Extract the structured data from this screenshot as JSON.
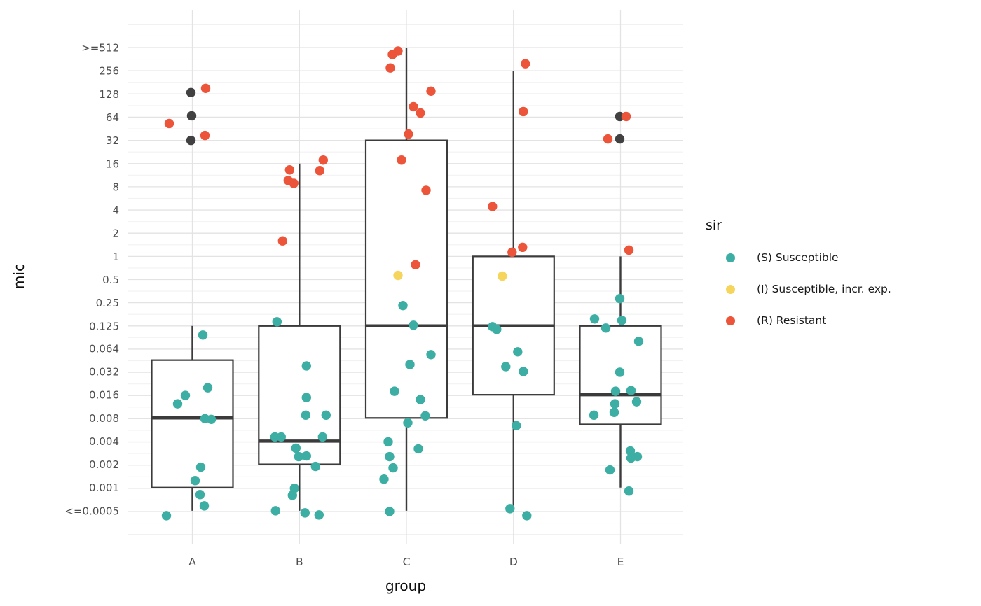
{
  "colors": {
    "S": "#3CAEA3",
    "I": "#F6D55C",
    "R": "#ED553B",
    "NA": "#414141",
    "box_stroke": "#3B3B3B",
    "grid_major": "#E3E3E3",
    "grid_minor": "#F2F2F2",
    "tick_label": "#4D4D4D",
    "axis_title": "#0D0D0D"
  },
  "axes": {
    "x_title": "group",
    "y_title": "mic"
  },
  "legend": {
    "title": "sir",
    "items": [
      {
        "sir": "S",
        "label": "(S) Susceptible"
      },
      {
        "sir": "I",
        "label": "(I) Susceptible, incr. exp."
      },
      {
        "sir": "R",
        "label": "(R) Resistant"
      }
    ]
  },
  "chart_data": {
    "type": "boxplot",
    "title": "",
    "xlabel": "group",
    "ylabel": "mic",
    "y_scale": "log2",
    "grid": "major+minor",
    "legend_position": "right",
    "x_categories": [
      "A",
      "B",
      "C",
      "D",
      "E"
    ],
    "y_ticks": [
      {
        "label": ">=512",
        "value": 512
      },
      {
        "label": "256",
        "value": 256
      },
      {
        "label": "128",
        "value": 128
      },
      {
        "label": "64",
        "value": 64
      },
      {
        "label": "32",
        "value": 32
      },
      {
        "label": "16",
        "value": 16
      },
      {
        "label": "8",
        "value": 8
      },
      {
        "label": "4",
        "value": 4
      },
      {
        "label": "2",
        "value": 2
      },
      {
        "label": "1",
        "value": 1
      },
      {
        "label": "0.5",
        "value": 0.5
      },
      {
        "label": "0.25",
        "value": 0.25
      },
      {
        "label": "0.125",
        "value": 0.125
      },
      {
        "label": "0.064",
        "value": 0.064
      },
      {
        "label": "0.032",
        "value": 0.032
      },
      {
        "label": "0.016",
        "value": 0.016
      },
      {
        "label": "0.008",
        "value": 0.008
      },
      {
        "label": "0.004",
        "value": 0.004
      },
      {
        "label": "0.002",
        "value": 0.002
      },
      {
        "label": "0.001",
        "value": 0.001
      },
      {
        "label": "<=0.0005",
        "value": 0.0005
      }
    ],
    "boxes": [
      {
        "group": "A",
        "whisker_low": 0.0005,
        "q1": 0.001,
        "median": 0.008,
        "q3": 0.045,
        "whisker_high": 0.125
      },
      {
        "group": "B",
        "whisker_low": 0.0005,
        "q1": 0.002,
        "median": 0.004,
        "q3": 0.125,
        "whisker_high": 16
      },
      {
        "group": "C",
        "whisker_low": 0.0005,
        "q1": 0.008,
        "median": 0.125,
        "q3": 32,
        "whisker_high": 512
      },
      {
        "group": "D",
        "whisker_low": 0.00055,
        "q1": 0.016,
        "median": 0.125,
        "q3": 1,
        "whisker_high": 256
      },
      {
        "group": "E",
        "whisker_low": 0.001,
        "q1": 0.0066,
        "median": 0.016,
        "q3": 0.125,
        "whisker_high": 1
      }
    ],
    "points": [
      {
        "group": "A",
        "sir": "NA",
        "mic": 128,
        "jx": -2,
        "jy": -2
      },
      {
        "group": "A",
        "sir": "NA",
        "mic": 64,
        "jx": -1,
        "jy": -2
      },
      {
        "group": "A",
        "sir": "NA",
        "mic": 32,
        "jx": -2,
        "jy": 0
      },
      {
        "group": "A",
        "sir": "R",
        "mic": 128,
        "jx": 19,
        "jy": -8
      },
      {
        "group": "A",
        "sir": "R",
        "mic": 64,
        "jx": -33,
        "jy": 9
      },
      {
        "group": "A",
        "sir": "R",
        "mic": 32,
        "jx": 18,
        "jy": -7
      },
      {
        "group": "A",
        "sir": "S",
        "mic": 0.125,
        "jx": 15,
        "jy": 13
      },
      {
        "group": "A",
        "sir": "S",
        "mic": 0.016,
        "jx": 22,
        "jy": -10
      },
      {
        "group": "A",
        "sir": "S",
        "mic": 0.016,
        "jx": -10,
        "jy": 1
      },
      {
        "group": "A",
        "sir": "S",
        "mic": 0.016,
        "jx": -21,
        "jy": 13
      },
      {
        "group": "A",
        "sir": "S",
        "mic": 0.008,
        "jx": 18,
        "jy": 1
      },
      {
        "group": "A",
        "sir": "S",
        "mic": 0.008,
        "jx": 27,
        "jy": 2
      },
      {
        "group": "A",
        "sir": "S",
        "mic": 0.002,
        "jx": 12,
        "jy": 4
      },
      {
        "group": "A",
        "sir": "S",
        "mic": 0.001,
        "jx": 4,
        "jy": -10
      },
      {
        "group": "A",
        "sir": "S",
        "mic": 0.001,
        "jx": 11,
        "jy": 10
      },
      {
        "group": "A",
        "sir": "S",
        "mic": 0.0005,
        "jx": 17,
        "jy": -7
      },
      {
        "group": "A",
        "sir": "S",
        "mic": 0.0005,
        "jx": -37,
        "jy": 7
      },
      {
        "group": "B",
        "sir": "R",
        "mic": 16,
        "jx": 34,
        "jy": -5
      },
      {
        "group": "B",
        "sir": "R",
        "mic": 16,
        "jx": -14,
        "jy": 9
      },
      {
        "group": "B",
        "sir": "R",
        "mic": 16,
        "jx": 29,
        "jy": 10
      },
      {
        "group": "B",
        "sir": "R",
        "mic": 8,
        "jx": -16,
        "jy": -9
      },
      {
        "group": "B",
        "sir": "R",
        "mic": 8,
        "jx": -8,
        "jy": -5
      },
      {
        "group": "B",
        "sir": "R",
        "mic": 2,
        "jx": -24,
        "jy": 11
      },
      {
        "group": "B",
        "sir": "S",
        "mic": 0.125,
        "jx": -32,
        "jy": -6
      },
      {
        "group": "B",
        "sir": "S",
        "mic": 0.032,
        "jx": 10,
        "jy": -8
      },
      {
        "group": "B",
        "sir": "S",
        "mic": 0.016,
        "jx": 10,
        "jy": 4
      },
      {
        "group": "B",
        "sir": "S",
        "mic": 0.008,
        "jx": 9,
        "jy": -4
      },
      {
        "group": "B",
        "sir": "S",
        "mic": 0.008,
        "jx": 38,
        "jy": -4
      },
      {
        "group": "B",
        "sir": "S",
        "mic": 0.004,
        "jx": -35,
        "jy": -6
      },
      {
        "group": "B",
        "sir": "S",
        "mic": 0.004,
        "jx": -26,
        "jy": -6
      },
      {
        "group": "B",
        "sir": "S",
        "mic": 0.004,
        "jx": 33,
        "jy": -6
      },
      {
        "group": "B",
        "sir": "S",
        "mic": 0.004,
        "jx": -5,
        "jy": 10
      },
      {
        "group": "B",
        "sir": "S",
        "mic": 0.002,
        "jx": -1,
        "jy": -11
      },
      {
        "group": "B",
        "sir": "S",
        "mic": 0.002,
        "jx": 10,
        "jy": -12
      },
      {
        "group": "B",
        "sir": "S",
        "mic": 0.002,
        "jx": 23,
        "jy": 3
      },
      {
        "group": "B",
        "sir": "S",
        "mic": 0.001,
        "jx": -7,
        "jy": 1
      },
      {
        "group": "B",
        "sir": "S",
        "mic": 0.001,
        "jx": -10,
        "jy": 11
      },
      {
        "group": "B",
        "sir": "S",
        "mic": 0.0005,
        "jx": -34,
        "jy": 0
      },
      {
        "group": "B",
        "sir": "S",
        "mic": 0.0005,
        "jx": 8,
        "jy": 3
      },
      {
        "group": "B",
        "sir": "S",
        "mic": 0.0005,
        "jx": 28,
        "jy": 6
      },
      {
        "group": "C",
        "sir": "R",
        "mic": 512,
        "jx": -12,
        "jy": 5
      },
      {
        "group": "C",
        "sir": "R",
        "mic": 512,
        "jx": -20,
        "jy": 10
      },
      {
        "group": "C",
        "sir": "R",
        "mic": 256,
        "jx": -23,
        "jy": -4
      },
      {
        "group": "C",
        "sir": "R",
        "mic": 128,
        "jx": 35,
        "jy": -4
      },
      {
        "group": "C",
        "sir": "R",
        "mic": 64,
        "jx": 10,
        "jy": -15
      },
      {
        "group": "C",
        "sir": "R",
        "mic": 64,
        "jx": 20,
        "jy": -6
      },
      {
        "group": "C",
        "sir": "R",
        "mic": 32,
        "jx": 3,
        "jy": -9
      },
      {
        "group": "C",
        "sir": "R",
        "mic": 16,
        "jx": -7,
        "jy": -5
      },
      {
        "group": "C",
        "sir": "R",
        "mic": 8,
        "jx": 28,
        "jy": 5
      },
      {
        "group": "C",
        "sir": "R",
        "mic": 1,
        "jx": 13,
        "jy": 12
      },
      {
        "group": "C",
        "sir": "I",
        "mic": 0.5,
        "jx": -12,
        "jy": -6
      },
      {
        "group": "C",
        "sir": "S",
        "mic": 0.25,
        "jx": -5,
        "jy": 4
      },
      {
        "group": "C",
        "sir": "S",
        "mic": 0.125,
        "jx": 10,
        "jy": -1
      },
      {
        "group": "C",
        "sir": "S",
        "mic": 0.064,
        "jx": 35,
        "jy": 9
      },
      {
        "group": "C",
        "sir": "S",
        "mic": 0.032,
        "jx": 5,
        "jy": -10
      },
      {
        "group": "C",
        "sir": "S",
        "mic": 0.016,
        "jx": -17,
        "jy": -5
      },
      {
        "group": "C",
        "sir": "S",
        "mic": 0.016,
        "jx": 20,
        "jy": 7
      },
      {
        "group": "C",
        "sir": "S",
        "mic": 0.008,
        "jx": 27,
        "jy": -3
      },
      {
        "group": "C",
        "sir": "S",
        "mic": 0.008,
        "jx": 2,
        "jy": 7
      },
      {
        "group": "C",
        "sir": "S",
        "mic": 0.004,
        "jx": -26,
        "jy": 1
      },
      {
        "group": "C",
        "sir": "S",
        "mic": 0.004,
        "jx": 17,
        "jy": 11
      },
      {
        "group": "C",
        "sir": "S",
        "mic": 0.002,
        "jx": -24,
        "jy": -11
      },
      {
        "group": "C",
        "sir": "S",
        "mic": 0.002,
        "jx": -19,
        "jy": 5
      },
      {
        "group": "C",
        "sir": "S",
        "mic": 0.001,
        "jx": -32,
        "jy": -12
      },
      {
        "group": "C",
        "sir": "S",
        "mic": 0.0005,
        "jx": -24,
        "jy": 1
      },
      {
        "group": "D",
        "sir": "R",
        "mic": 256,
        "jx": 17,
        "jy": -10
      },
      {
        "group": "D",
        "sir": "R",
        "mic": 64,
        "jx": 14,
        "jy": -8
      },
      {
        "group": "D",
        "sir": "R",
        "mic": 4,
        "jx": -30,
        "jy": -5
      },
      {
        "group": "D",
        "sir": "R",
        "mic": 1,
        "jx": 13,
        "jy": -13
      },
      {
        "group": "D",
        "sir": "R",
        "mic": 1,
        "jx": -2,
        "jy": -6
      },
      {
        "group": "D",
        "sir": "I",
        "mic": 0.5,
        "jx": -16,
        "jy": -5
      },
      {
        "group": "D",
        "sir": "S",
        "mic": 0.125,
        "jx": -30,
        "jy": 1
      },
      {
        "group": "D",
        "sir": "S",
        "mic": 0.125,
        "jx": -24,
        "jy": 5
      },
      {
        "group": "D",
        "sir": "S",
        "mic": 0.064,
        "jx": 6,
        "jy": 5
      },
      {
        "group": "D",
        "sir": "S",
        "mic": 0.032,
        "jx": -11,
        "jy": -7
      },
      {
        "group": "D",
        "sir": "S",
        "mic": 0.032,
        "jx": 14,
        "jy": 0
      },
      {
        "group": "D",
        "sir": "S",
        "mic": 0.008,
        "jx": 4,
        "jy": 11
      },
      {
        "group": "D",
        "sir": "S",
        "mic": 0.0005,
        "jx": -5,
        "jy": -3
      },
      {
        "group": "D",
        "sir": "S",
        "mic": 0.0005,
        "jx": 19,
        "jy": 7
      },
      {
        "group": "E",
        "sir": "NA",
        "mic": 64,
        "jx": -1,
        "jy": -1
      },
      {
        "group": "E",
        "sir": "NA",
        "mic": 32,
        "jx": -1,
        "jy": -2
      },
      {
        "group": "E",
        "sir": "R",
        "mic": 64,
        "jx": 8,
        "jy": -1
      },
      {
        "group": "E",
        "sir": "R",
        "mic": 32,
        "jx": -18,
        "jy": -2
      },
      {
        "group": "E",
        "sir": "R",
        "mic": 1,
        "jx": 12,
        "jy": -9
      },
      {
        "group": "E",
        "sir": "S",
        "mic": 0.25,
        "jx": -1,
        "jy": -6
      },
      {
        "group": "E",
        "sir": "S",
        "mic": 0.125,
        "jx": -37,
        "jy": -10
      },
      {
        "group": "E",
        "sir": "S",
        "mic": 0.125,
        "jx": 2,
        "jy": -8
      },
      {
        "group": "E",
        "sir": "S",
        "mic": 0.125,
        "jx": -21,
        "jy": 3
      },
      {
        "group": "E",
        "sir": "S",
        "mic": 0.064,
        "jx": 26,
        "jy": -10
      },
      {
        "group": "E",
        "sir": "S",
        "mic": 0.032,
        "jx": -1,
        "jy": 1
      },
      {
        "group": "E",
        "sir": "S",
        "mic": 0.016,
        "jx": -7,
        "jy": -5
      },
      {
        "group": "E",
        "sir": "S",
        "mic": 0.016,
        "jx": 15,
        "jy": -6
      },
      {
        "group": "E",
        "sir": "S",
        "mic": 0.016,
        "jx": -8,
        "jy": 13
      },
      {
        "group": "E",
        "sir": "S",
        "mic": 0.016,
        "jx": 23,
        "jy": 10
      },
      {
        "group": "E",
        "sir": "S",
        "mic": 0.008,
        "jx": -9,
        "jy": -8
      },
      {
        "group": "E",
        "sir": "S",
        "mic": 0.008,
        "jx": -38,
        "jy": -4
      },
      {
        "group": "E",
        "sir": "S",
        "mic": 0.004,
        "jx": 14,
        "jy": 14
      },
      {
        "group": "E",
        "sir": "S",
        "mic": 0.002,
        "jx": 24,
        "jy": -11
      },
      {
        "group": "E",
        "sir": "S",
        "mic": 0.002,
        "jx": 15,
        "jy": -9
      },
      {
        "group": "E",
        "sir": "S",
        "mic": 0.002,
        "jx": -15,
        "jy": 8
      },
      {
        "group": "E",
        "sir": "S",
        "mic": 0.001,
        "jx": 12,
        "jy": 5
      }
    ]
  }
}
